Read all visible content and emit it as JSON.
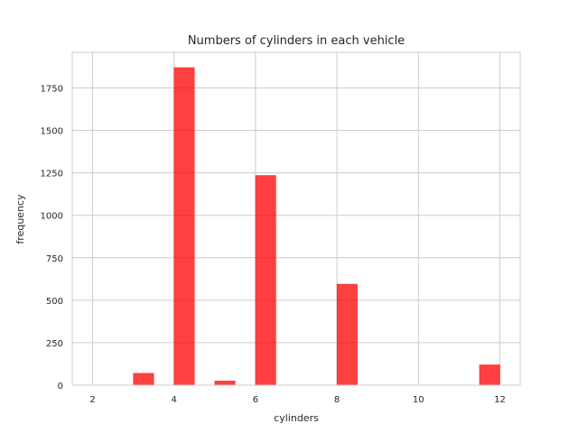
{
  "chart_data": {
    "type": "bar",
    "title": "Numbers of cylinders in each vehicle",
    "xlabel": "cylinders",
    "ylabel": "frequency",
    "xlim": [
      1.5,
      12.5
    ],
    "ylim": [
      0,
      1960
    ],
    "x_ticks": [
      2,
      4,
      6,
      8,
      10,
      12
    ],
    "y_ticks": [
      0,
      250,
      500,
      750,
      1000,
      1250,
      1500,
      1750
    ],
    "y_tick_labels": [
      "0",
      "250",
      "500",
      "750",
      "1000",
      "1250",
      "1500",
      "1750"
    ],
    "grid": true,
    "color": "#ff0000",
    "bins": [
      {
        "x0": 3.0,
        "x1": 3.5,
        "value": 70
      },
      {
        "x0": 4.0,
        "x1": 4.5,
        "value": 1870
      },
      {
        "x0": 5.0,
        "x1": 5.5,
        "value": 25
      },
      {
        "x0": 6.0,
        "x1": 6.5,
        "value": 1235
      },
      {
        "x0": 8.0,
        "x1": 8.5,
        "value": 595
      },
      {
        "x0": 11.5,
        "x1": 12.0,
        "value": 120
      }
    ]
  }
}
